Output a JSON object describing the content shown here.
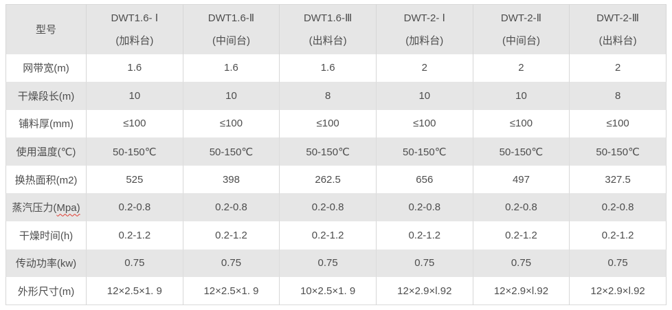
{
  "table": {
    "header": {
      "model_label": "型号",
      "columns": [
        {
          "model": "DWT1.6- Ⅰ",
          "station": "(加料台)"
        },
        {
          "model": "DWT1.6-Ⅱ",
          "station": "(中间台)"
        },
        {
          "model": "DWT1.6-Ⅲ",
          "station": "(出料台)"
        },
        {
          "model": "DWT-2- Ⅰ",
          "station": "(加料台)"
        },
        {
          "model": "DWT-2-Ⅱ",
          "station": "(中间台)"
        },
        {
          "model": "DWT-2-Ⅲ",
          "station": "(出料台)"
        }
      ]
    },
    "rows": [
      {
        "label": "网带宽(m)",
        "values": [
          "1.6",
          "1.6",
          "1.6",
          "2",
          "2",
          "2"
        ]
      },
      {
        "label": "干燥段长(m)",
        "values": [
          "10",
          "10",
          "8",
          "10",
          "10",
          "8"
        ]
      },
      {
        "label": "铺料厚(mm)",
        "values": [
          "≤100",
          "≤100",
          "≤100",
          "≤100",
          "≤100",
          "≤100"
        ]
      },
      {
        "label": "使用温度(℃)",
        "values": [
          "50-150℃",
          "50-150℃",
          "50-150℃",
          "50-150℃",
          "50-150℃",
          "50-150℃"
        ]
      },
      {
        "label": "换热面积(m2)",
        "values": [
          "525",
          "398",
          "262.5",
          "656",
          "497",
          "327.5"
        ]
      },
      {
        "label": "蒸汽压力(Mpa)",
        "label_prefix": "蒸汽压力(",
        "label_wavy": "Mpa)",
        "values": [
          "0.2-0.8",
          "0.2-0.8",
          "0.2-0.8",
          "0.2-0.8",
          "0.2-0.8",
          "0.2-0.8"
        ]
      },
      {
        "label": "干燥时间(h)",
        "values": [
          "0.2-1.2",
          "0.2-1.2",
          "0.2-1.2",
          "0.2-1.2",
          "0.2-1.2",
          "0.2-1.2"
        ]
      },
      {
        "label": "传动功率(kw)",
        "values": [
          "0.75",
          "0.75",
          "0.75",
          "0.75",
          "0.75",
          "0.75"
        ]
      },
      {
        "label": "外形尺寸(m)",
        "values": [
          "12×2.5×1. 9",
          "12×2.5×1. 9",
          "10×2.5×1. 9",
          "12×2.9×l.92",
          "12×2.9×l.92",
          "12×2.9×l.92"
        ]
      }
    ]
  },
  "colors": {
    "stripe_gray": "#e6e6e6",
    "border": "#d6d6d6",
    "text": "#4d4d4d",
    "spellcheck_red": "#e03a2f"
  }
}
